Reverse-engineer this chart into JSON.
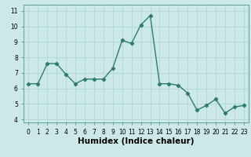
{
  "x": [
    0,
    1,
    2,
    3,
    4,
    5,
    6,
    7,
    8,
    9,
    10,
    11,
    12,
    13,
    14,
    15,
    16,
    17,
    18,
    19,
    20,
    21,
    22,
    23
  ],
  "y": [
    6.3,
    6.3,
    7.6,
    7.6,
    6.9,
    6.3,
    6.6,
    6.6,
    6.6,
    7.3,
    9.1,
    8.9,
    10.1,
    10.7,
    6.3,
    6.3,
    6.2,
    5.7,
    4.6,
    4.9,
    5.3,
    4.4,
    4.8,
    4.9
  ],
  "line_color": "#2e7d6e",
  "marker": "D",
  "marker_size": 2.2,
  "bg_color": "#cce9e7",
  "grid_color": "#aad4d2",
  "xlabel": "Humidex (Indice chaleur)",
  "xlim": [
    -0.5,
    23.5
  ],
  "ylim": [
    3.8,
    11.4
  ],
  "xticks": [
    0,
    1,
    2,
    3,
    4,
    5,
    6,
    7,
    8,
    9,
    10,
    11,
    12,
    13,
    14,
    15,
    16,
    17,
    18,
    19,
    20,
    21,
    22,
    23
  ],
  "yticks": [
    4,
    5,
    6,
    7,
    8,
    9,
    10,
    11
  ],
  "tick_fontsize": 5.5,
  "xlabel_fontsize": 7.5,
  "line_width": 1.0
}
